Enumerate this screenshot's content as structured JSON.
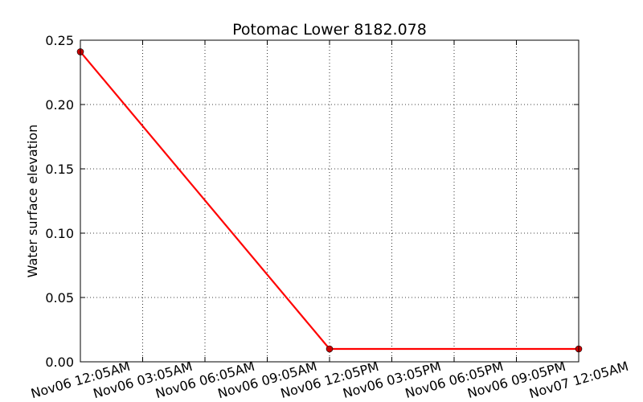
{
  "chart_data": {
    "type": "line",
    "title": "Potomac Lower 8182.078",
    "xlabel": "",
    "ylabel": "Water surface elevation",
    "ylim": [
      0,
      0.25
    ],
    "yticks": [
      "0.00",
      "0.05",
      "0.10",
      "0.15",
      "0.20",
      "0.25"
    ],
    "xtick_labels": [
      "Nov06 12:05AM",
      "Nov06 03:05AM",
      "Nov06 06:05AM",
      "Nov06 09:05AM",
      "Nov06 12:05PM",
      "Nov06 03:05PM",
      "Nov06 06:05PM",
      "Nov06 09:05PM",
      "Nov07 12:05AM"
    ],
    "xlim": [
      "Nov06 12:05AM",
      "Nov07 12:05AM"
    ],
    "grid": true,
    "line_color": "#ff0000",
    "marker_color": "#cc0000",
    "series": [
      {
        "x": [
          "Nov06 12:05AM",
          "Nov06 12:05PM",
          "Nov07 12:05AM"
        ],
        "values": [
          0.241,
          0.01,
          0.01
        ]
      }
    ]
  }
}
